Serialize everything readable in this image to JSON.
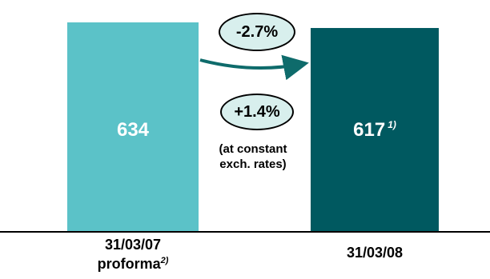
{
  "chart_data": {
    "type": "bar",
    "categories": [
      "31/03/07",
      "31/03/08"
    ],
    "category_suffix": [
      "proforma",
      ""
    ],
    "category_footnotes": [
      "2)",
      ""
    ],
    "values": [
      634,
      617
    ],
    "value_labels": [
      "634",
      "617"
    ],
    "value_footnotes": [
      "",
      "1)"
    ],
    "bar_colors": [
      "#5bc2c8",
      "#005960"
    ],
    "ylim": [
      0,
      634
    ],
    "change": "-2.7%",
    "change_constant": "+1.4%",
    "change_constant_note_line1": "(at constant",
    "change_constant_note_line2": "exch. rates)",
    "arrow_color": "#0e6b6b",
    "bubble_color": "#d8efed"
  }
}
